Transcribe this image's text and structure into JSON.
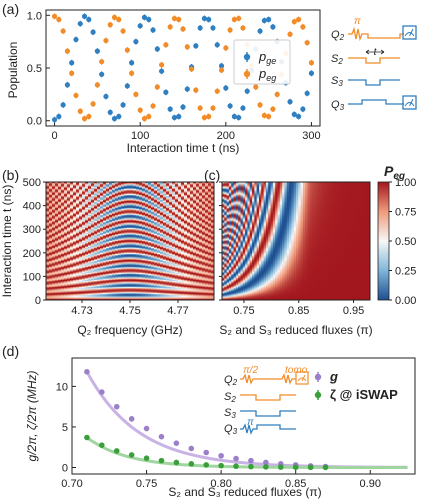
{
  "colors": {
    "blue": "#2f7fc1",
    "orange": "#f28c28",
    "purple": "#9b7fc8",
    "purple_line": "#c8b2e6",
    "green": "#3a9e3a",
    "green_line": "#9fd59f",
    "cmap_low": "#1d4f91",
    "cmap_mid": "#f7f7f7",
    "cmap_high": "#a3171e"
  },
  "panel_labels": {
    "a": "(a)",
    "b": "(b)",
    "c": "(c)",
    "d": "(d)"
  },
  "panels": {
    "a": {
      "ylabel": "Population",
      "xlabel": "Interaction time t (ns)",
      "legend": [
        {
          "key": "p_ge",
          "label": "p",
          "sub": "ge"
        },
        {
          "key": "p_eg",
          "label": "p",
          "sub": "eg"
        }
      ],
      "pulse_labels": [
        "Q",
        "S",
        "S",
        "Q"
      ],
      "pulse_subs": [
        "2",
        "2",
        "3",
        "3"
      ],
      "pi_label": "π",
      "t_label": "t"
    },
    "b": {
      "ylabel": "Interaction time t (ns)",
      "xlabel": "Q₂ frequency (GHz)"
    },
    "c": {
      "xlabel": "S₂ and S₃ reduced fluxes (π)",
      "colorbar_label": "P",
      "colorbar_sub": "eg",
      "colorbar_ticks": [
        "1.00",
        "0.75",
        "0.50",
        "0.25",
        "0.00"
      ]
    },
    "d": {
      "ylabel": "g/2π, ζ/2π (MHz)",
      "xlabel": "S₂ and S₃ reduced fluxes (π)",
      "legend_g": "g",
      "legend_zeta": "ζ @ iSWAP",
      "pulse_labels": [
        "Q",
        "S",
        "S",
        "Q"
      ],
      "pulse_subs": [
        "2",
        "2",
        "3",
        "3"
      ],
      "pi2_label": "π/2",
      "pi_label": "π",
      "tomo_label": "tomo."
    }
  },
  "chart_data": [
    {
      "panel": "a",
      "type": "scatter",
      "xlabel": "Interaction time t (ns)",
      "ylabel": "Population",
      "xlim": [
        -10,
        310
      ],
      "ylim": [
        -0.05,
        1.05
      ],
      "xticks": [
        0,
        100,
        200,
        300
      ],
      "yticks": [
        0.0,
        0.5,
        1.0
      ],
      "x": [
        0,
        5,
        10,
        15,
        20,
        25,
        30,
        35,
        40,
        45,
        50,
        55,
        60,
        65,
        70,
        75,
        80,
        85,
        90,
        95,
        100,
        105,
        110,
        115,
        120,
        125,
        130,
        135,
        140,
        145,
        150,
        155,
        160,
        165,
        170,
        175,
        180,
        185,
        190,
        195,
        200,
        205,
        210,
        215,
        220,
        225,
        230,
        235,
        240,
        245,
        250,
        255,
        260,
        265,
        270,
        275,
        280,
        285,
        290,
        295,
        300
      ],
      "series": [
        {
          "name": "p_ge",
          "values": [
            0.01,
            0.04,
            0.15,
            0.34,
            0.55,
            0.77,
            0.92,
            0.99,
            0.96,
            0.84,
            0.66,
            0.44,
            0.23,
            0.08,
            0.02,
            0.04,
            0.15,
            0.33,
            0.55,
            0.75,
            0.9,
            0.98,
            0.96,
            0.86,
            0.68,
            0.47,
            0.27,
            0.11,
            0.03,
            0.04,
            0.13,
            0.3,
            0.51,
            0.71,
            0.88,
            0.97,
            0.96,
            0.88,
            0.72,
            0.52,
            0.31,
            0.14,
            0.04,
            0.03,
            0.12,
            0.28,
            0.48,
            0.68,
            0.85,
            0.95,
            0.96,
            0.89,
            0.75,
            0.56,
            0.36,
            0.18,
            0.06,
            0.04,
            0.11,
            0.26,
            0.45
          ]
        },
        {
          "name": "p_eg",
          "values": [
            0.99,
            0.96,
            0.85,
            0.66,
            0.45,
            0.24,
            0.09,
            0.02,
            0.04,
            0.16,
            0.34,
            0.56,
            0.76,
            0.91,
            0.98,
            0.96,
            0.85,
            0.67,
            0.45,
            0.25,
            0.1,
            0.02,
            0.04,
            0.14,
            0.32,
            0.53,
            0.72,
            0.89,
            0.97,
            0.96,
            0.87,
            0.7,
            0.49,
            0.29,
            0.12,
            0.03,
            0.04,
            0.12,
            0.28,
            0.48,
            0.69,
            0.86,
            0.96,
            0.97,
            0.88,
            0.72,
            0.52,
            0.32,
            0.15,
            0.05,
            0.04,
            0.11,
            0.25,
            0.44,
            0.64,
            0.82,
            0.94,
            0.96,
            0.89,
            0.74,
            0.55
          ]
        }
      ]
    },
    {
      "panel": "b",
      "type": "heatmap",
      "xlabel": "Q₂ frequency (GHz)",
      "ylabel": "Interaction time t (ns)",
      "xlim": [
        4.715,
        4.785
      ],
      "ylim": [
        0,
        500
      ],
      "xticks": [
        4.73,
        4.75,
        4.77
      ],
      "yticks": [
        0,
        100,
        200,
        300,
        400,
        500
      ],
      "resonance_GHz": 4.75,
      "coupling_MHz": 12
    },
    {
      "panel": "c",
      "type": "heatmap",
      "xlabel": "S₂ and S₃ reduced fluxes (π)",
      "xlim": [
        0.71,
        0.98
      ],
      "ylim": [
        0,
        500
      ],
      "xticks": [
        0.75,
        0.85,
        0.95
      ],
      "colorbar_range": [
        0.0,
        1.0
      ]
    },
    {
      "panel": "d",
      "type": "scatter",
      "xlabel": "S₂ and S₃ reduced fluxes (π)",
      "ylabel": "g/2π, ζ/2π (MHz)",
      "xlim": [
        0.7,
        0.93
      ],
      "ylim": [
        -0.8,
        13.5
      ],
      "xticks": [
        0.7,
        0.75,
        0.8,
        0.85,
        0.9
      ],
      "yticks": [
        0,
        5,
        10
      ],
      "series": [
        {
          "name": "g",
          "x": [
            0.71,
            0.72,
            0.73,
            0.74,
            0.75,
            0.76,
            0.77,
            0.78,
            0.79,
            0.8,
            0.81,
            0.82,
            0.83,
            0.84,
            0.85,
            0.86,
            0.87
          ],
          "values": [
            11.8,
            9.3,
            7.5,
            6.0,
            4.8,
            3.8,
            3.0,
            2.35,
            1.85,
            1.45,
            1.1,
            0.85,
            0.62,
            0.45,
            0.32,
            0.2,
            0.12
          ]
        },
        {
          "name": "ζ @ iSWAP",
          "x": [
            0.71,
            0.72,
            0.73,
            0.74,
            0.75,
            0.76,
            0.77,
            0.78,
            0.79,
            0.8,
            0.81,
            0.82,
            0.83,
            0.84,
            0.85,
            0.86,
            0.87
          ],
          "values": [
            3.7,
            2.75,
            2.05,
            1.55,
            1.15,
            0.85,
            0.62,
            0.45,
            0.32,
            0.23,
            0.16,
            0.11,
            0.07,
            0.05,
            0.03,
            0.02,
            0.01
          ]
        }
      ]
    }
  ]
}
